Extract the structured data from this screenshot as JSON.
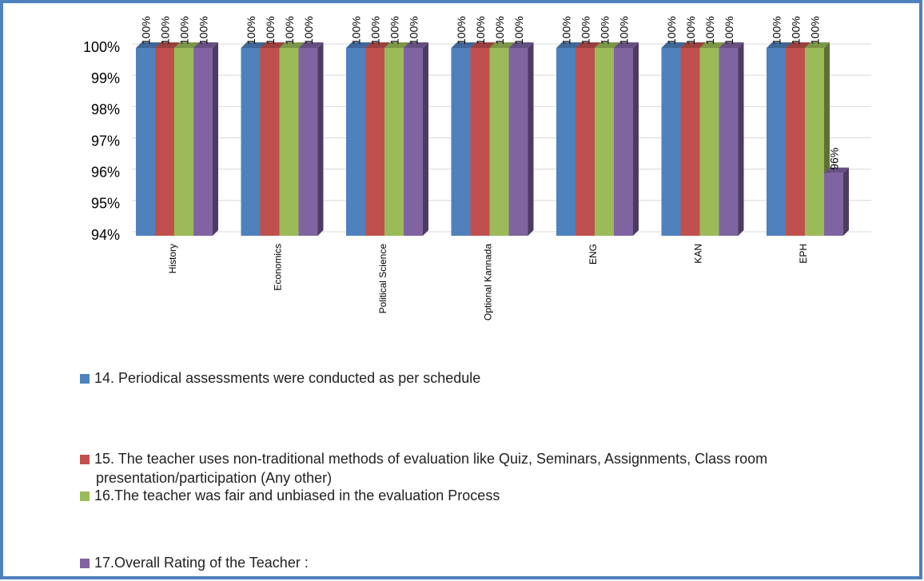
{
  "chart_data": {
    "type": "bar",
    "categories": [
      "History",
      "Economics",
      "Political Science",
      "Optional Kannada",
      "ENG",
      "KAN",
      "EPH"
    ],
    "series": [
      {
        "name": "14. Periodical assessments were conducted as per schedule",
        "color": "#4f81bd",
        "values": [
          100,
          100,
          100,
          100,
          100,
          100,
          100
        ],
        "value_labels": [
          "100%",
          "100%",
          "100%",
          "100%",
          "100%",
          "100%",
          "100%"
        ]
      },
      {
        "name": "15. The teacher uses non-traditional methods of evaluation like Quiz, Seminars, Assignments, Class room  presentation/participation (Any other)",
        "color": "#c0504d",
        "values": [
          100,
          100,
          100,
          100,
          100,
          100,
          100
        ],
        "value_labels": [
          "100%",
          "100%",
          "100%",
          "100%",
          "100%",
          "100%",
          "100%"
        ]
      },
      {
        "name": "16.The teacher was fair and unbiased in the evaluation Process",
        "color": "#9bbb59",
        "values": [
          100,
          100,
          100,
          100,
          100,
          100,
          100
        ],
        "value_labels": [
          "100%",
          "100%",
          "100%",
          "100%",
          "100%",
          "100%",
          "100%"
        ]
      },
      {
        "name": "17.Overall Rating of the Teacher :",
        "color": "#8064a2",
        "values": [
          100,
          100,
          100,
          100,
          100,
          100,
          96
        ],
        "value_labels": [
          "100%",
          "100%",
          "100%",
          "100%",
          "100%",
          "100%",
          "96%"
        ]
      }
    ],
    "ylim": [
      94,
      100
    ],
    "yticks": [
      {
        "value": 94,
        "label": "94%"
      },
      {
        "value": 95,
        "label": "95%"
      },
      {
        "value": 96,
        "label": "96%"
      },
      {
        "value": 97,
        "label": "97%"
      },
      {
        "value": 98,
        "label": "98%"
      },
      {
        "value": 99,
        "label": "99%"
      },
      {
        "value": 100,
        "label": "100%"
      }
    ],
    "grid": true
  }
}
